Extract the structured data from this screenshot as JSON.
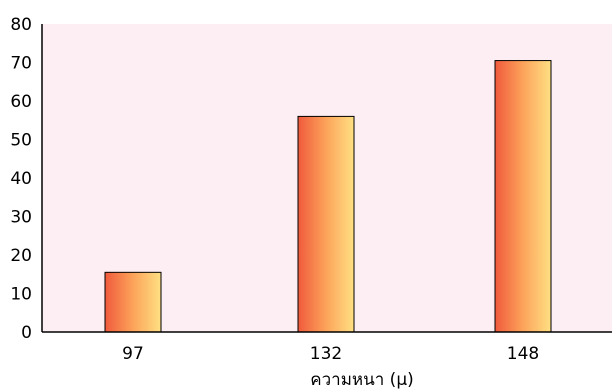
{
  "chart_data": {
    "type": "bar",
    "title": "",
    "xlabel": "ความหนา (μ)",
    "ylabel": "",
    "categories": [
      "97",
      "132",
      "148"
    ],
    "values": [
      15.5,
      56,
      70.5
    ],
    "ylim": [
      0,
      80
    ],
    "yticks": [
      "0",
      "10",
      "20",
      "30",
      "40",
      "50",
      "60",
      "70",
      "80"
    ],
    "grid": false,
    "legend": "none",
    "colors": {
      "plot_background": "#fdeef4",
      "bar_gradient_left": "#f05a3c",
      "bar_gradient_mid": "#fca35a",
      "bar_gradient_right": "#ffe083",
      "bar_stroke": "#000000",
      "axis": "#000000"
    }
  }
}
